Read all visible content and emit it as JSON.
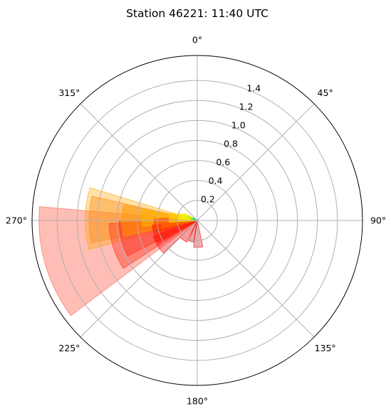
{
  "chart_data": {
    "type": "polar-bar",
    "title": "Station 46221: 11:40 UTC",
    "theta_direction": "clockwise",
    "theta_zero": "N",
    "theta_tick_labels": [
      "0°",
      "45°",
      "90°",
      "135°",
      "180°",
      "225°",
      "270°",
      "315°"
    ],
    "r_ticks": [
      0.2,
      0.4,
      0.6,
      0.8,
      1.0,
      1.2,
      1.4
    ],
    "r_tick_labels": [
      "0.2",
      "0.4",
      "0.6",
      "0.8",
      "1.0",
      "1.2",
      "1.4"
    ],
    "rlim": [
      0,
      1.65
    ],
    "grid": true,
    "bars": [
      {
        "theta_start": 233,
        "theta_end": 275,
        "r": 1.58,
        "color": "#ff6e5c",
        "opacity": 0.45
      },
      {
        "theta_start": 255,
        "theta_end": 287,
        "r": 1.12,
        "color": "#ffa500",
        "opacity": 0.35
      },
      {
        "theta_start": 258,
        "theta_end": 283,
        "r": 1.08,
        "color": "#ff8c1a",
        "opacity": 0.4
      },
      {
        "theta_start": 237,
        "theta_end": 268,
        "r": 0.88,
        "color": "#ff3c28",
        "opacity": 0.45
      },
      {
        "theta_start": 243,
        "theta_end": 270,
        "r": 0.78,
        "color": "#ff2a1e",
        "opacity": 0.4
      },
      {
        "theta_start": 258,
        "theta_end": 282,
        "r": 0.75,
        "color": "#ff9c00",
        "opacity": 0.5
      },
      {
        "theta_start": 264,
        "theta_end": 282,
        "r": 0.55,
        "color": "#ffb400",
        "opacity": 0.6
      },
      {
        "theta_start": 226,
        "theta_end": 250,
        "r": 0.47,
        "color": "#ff0000",
        "opacity": 0.35
      },
      {
        "theta_start": 240,
        "theta_end": 264,
        "r": 0.45,
        "color": "#ff1400",
        "opacity": 0.5
      },
      {
        "theta_start": 254,
        "theta_end": 272,
        "r": 0.43,
        "color": "#ff4000",
        "opacity": 0.6
      },
      {
        "theta_start": 258,
        "theta_end": 274,
        "r": 0.36,
        "color": "#ff6a00",
        "opacity": 0.65
      },
      {
        "theta_start": 190,
        "theta_end": 203,
        "r": 0.22,
        "color": "#c80000",
        "opacity": 0.35
      },
      {
        "theta_start": 168,
        "theta_end": 188,
        "r": 0.27,
        "color": "#dc1414",
        "opacity": 0.35
      },
      {
        "theta_start": 206,
        "theta_end": 226,
        "r": 0.24,
        "color": "#ff0000",
        "opacity": 0.4
      },
      {
        "theta_start": 266,
        "theta_end": 286,
        "r": 0.28,
        "color": "#ffd000",
        "opacity": 0.7
      },
      {
        "theta_start": 272,
        "theta_end": 292,
        "r": 0.2,
        "color": "#ffe600",
        "opacity": 0.75
      },
      {
        "theta_start": 278,
        "theta_end": 298,
        "r": 0.15,
        "color": "#f0f000",
        "opacity": 0.8
      },
      {
        "theta_start": 285,
        "theta_end": 300,
        "r": 0.1,
        "color": "#c8f000",
        "opacity": 0.85
      },
      {
        "theta_start": 280,
        "theta_end": 296,
        "r": 0.06,
        "color": "#64e632",
        "opacity": 0.85
      },
      {
        "theta_start": 290,
        "theta_end": 302,
        "r": 0.04,
        "color": "#00d2c8",
        "opacity": 0.85
      }
    ]
  }
}
